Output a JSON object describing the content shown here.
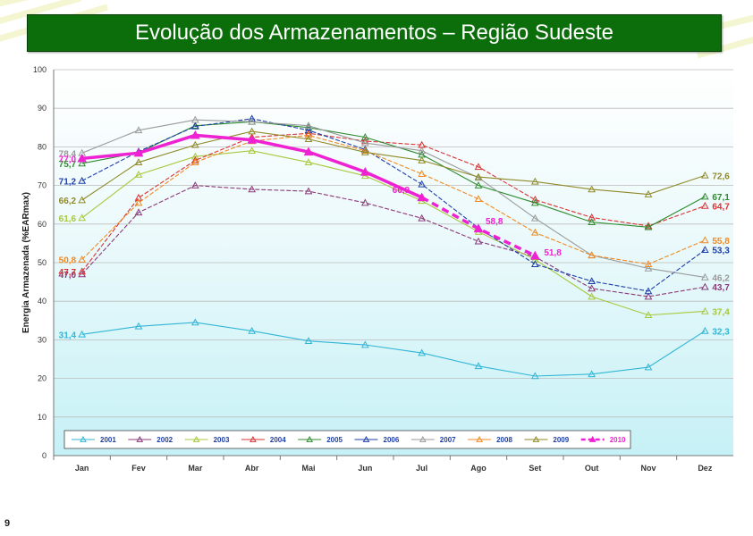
{
  "header": {
    "title": "Evolução dos Armazenamentos – Região Sudeste"
  },
  "footer": {
    "page_number": "9"
  },
  "chart_data": {
    "type": "line",
    "title": "",
    "ylabel": "Energia Armazenada (%EARmax)",
    "xlabel": "",
    "ylim": [
      0,
      100
    ],
    "yticks": [
      "0",
      "10",
      "20",
      "30",
      "40",
      "50",
      "60",
      "70",
      "80",
      "90",
      "100"
    ],
    "categories": [
      "Jan",
      "Fev",
      "Mar",
      "Abr",
      "Mai",
      "Jun",
      "Jul",
      "Ago",
      "Set",
      "Out",
      "Nov",
      "Dez"
    ],
    "grid": true,
    "legend_position": "bottom",
    "series": [
      {
        "name": "2001",
        "color": "#33b5d6",
        "dashed": false,
        "bold": false,
        "values": [
          31.4,
          33.5,
          34.5,
          32.3,
          29.7,
          28.7,
          26.6,
          23.2,
          20.6,
          21.1,
          22.9,
          32.3
        ],
        "start_label": "31,4",
        "end_label": "32,3"
      },
      {
        "name": "2002",
        "color": "#8b3a78",
        "dashed": false,
        "bold": false,
        "values": [
          47.0,
          63.0,
          70.0,
          69.0,
          68.5,
          65.5,
          61.5,
          55.5,
          51.5,
          43.3,
          41.2,
          43.7
        ],
        "start_label": "47,0",
        "end_label": "43,7"
      },
      {
        "name": "2003",
        "color": "#a8c83c",
        "dashed": false,
        "bold": false,
        "values": [
          61.6,
          72.8,
          77.5,
          79.0,
          76.0,
          72.5,
          66.0,
          58.0,
          50.8,
          41.2,
          36.4,
          37.4
        ],
        "start_label": "61,6",
        "end_label": "37,4"
      },
      {
        "name": "2004",
        "color": "#d93333",
        "dashed": false,
        "bold": false,
        "values": [
          47.7,
          66.8,
          76.5,
          82.5,
          83.5,
          81.5,
          80.5,
          74.8,
          66.3,
          61.7,
          59.5,
          64.7
        ],
        "start_label": "47,7",
        "end_label": "64,7"
      },
      {
        "name": "2005",
        "color": "#2e8b2e",
        "dashed": false,
        "bold": false,
        "values": [
          75.7,
          78.5,
          85.5,
          86.5,
          85.0,
          82.5,
          78.0,
          70.0,
          65.5,
          60.5,
          59.2,
          67.1
        ],
        "start_label": "75,7",
        "end_label": "67,1"
      },
      {
        "name": "2006",
        "color": "#1f3fa8",
        "dashed": false,
        "bold": false,
        "values": [
          71.2,
          78.8,
          85.3,
          87.3,
          84.3,
          79.3,
          70.3,
          59.0,
          49.6,
          45.2,
          42.6,
          53.3
        ],
        "start_label": "71,2",
        "end_label": "53,3"
      },
      {
        "name": "2007",
        "color": "#9a9a9a",
        "dashed": false,
        "bold": false,
        "values": [
          78.4,
          84.3,
          87.0,
          86.5,
          85.5,
          81.0,
          79.0,
          72.0,
          61.5,
          51.9,
          48.5,
          46.2
        ],
        "start_label": "78,4",
        "end_label": "46,2"
      },
      {
        "name": "2008",
        "color": "#f08a24",
        "dashed": false,
        "bold": false,
        "values": [
          50.8,
          65.5,
          76.0,
          81.5,
          83.0,
          79.0,
          73.0,
          66.5,
          57.8,
          51.9,
          49.6,
          55.8
        ],
        "start_label": "50,8",
        "end_label": "55,8"
      },
      {
        "name": "2009",
        "color": "#8f8a28",
        "dashed": false,
        "bold": false,
        "values": [
          66.2,
          76.0,
          80.5,
          84.0,
          82.0,
          78.6,
          76.5,
          72.2,
          71.0,
          69.0,
          67.7,
          72.6
        ],
        "start_label": "66,2",
        "end_label": "72,6"
      },
      {
        "name": "2010",
        "color": "#ee22d2",
        "dashed": true,
        "bold": true,
        "values": [
          77.0,
          78.4,
          83.0,
          81.8,
          78.7,
          73.5,
          66.9,
          58.8,
          51.8,
          null,
          null,
          null
        ],
        "start_label": "77,0",
        "end_label": ""
      }
    ],
    "annotations": [
      "66,9",
      "58,8",
      "51,8"
    ]
  }
}
